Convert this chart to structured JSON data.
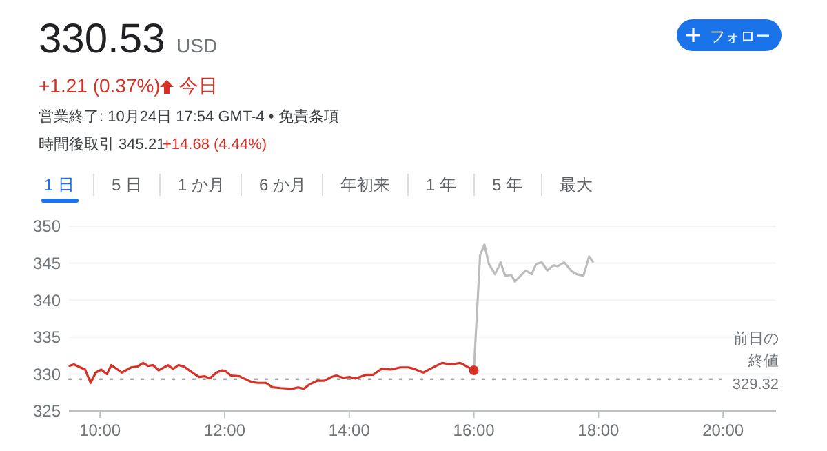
{
  "chart_data": {
    "type": "line",
    "title": "330.53",
    "annotations": [
      "USD",
      "+1.21 (0.37%)",
      "今日",
      "営業終了: 10月24日 17:54 GMT-4 • 免責条項",
      "時間後取引 345.21",
      "+14.68 (4.44%)",
      "1 日",
      "5 日",
      "1 か月",
      "6 か月",
      "年初来",
      "1 年",
      "5 年",
      "最大",
      "フォロー"
    ],
    "xlim": [
      9.5,
      20.85
    ],
    "xticks": [
      {
        "value": 10,
        "label": "10:00"
      },
      {
        "value": 12,
        "label": "12:00"
      },
      {
        "value": 14,
        "label": "14:00"
      },
      {
        "value": 16,
        "label": "16:00"
      },
      {
        "value": 18,
        "label": "18:00"
      },
      {
        "value": 20,
        "label": "20:00"
      }
    ],
    "ylim": [
      325,
      350
    ],
    "yticks": [
      325,
      330,
      335,
      340,
      345,
      350
    ],
    "grid": "y",
    "marker": "none",
    "line_style": "solid",
    "ref_lines": [
      {
        "axis": "y",
        "value": 329.32,
        "label": "前日の終値 329.32",
        "color": "#9e9e9e",
        "line_style": "dotted"
      }
    ],
    "series": [
      {
        "color": "#d93025",
        "x": [
          9.51,
          9.58,
          9.76,
          9.85,
          9.93,
          10.02,
          10.11,
          10.18,
          10.35,
          10.5,
          10.6,
          10.69,
          10.77,
          10.85,
          10.94,
          11.09,
          11.17,
          11.26,
          11.35,
          11.5,
          11.59,
          11.68,
          11.76,
          11.87,
          11.96,
          12.01,
          12.1,
          12.24,
          12.31,
          12.44,
          12.53,
          12.66,
          12.77,
          12.9,
          13.08,
          13.18,
          13.27,
          13.36,
          13.49,
          13.6,
          13.71,
          13.79,
          13.9,
          14.01,
          14.1,
          14.27,
          14.38,
          14.52,
          14.67,
          14.82,
          14.95,
          15.04,
          15.19,
          15.3,
          15.49,
          15.63,
          15.78,
          15.85,
          16.0
        ],
        "values": [
          331.1,
          331.3,
          330.6,
          328.8,
          330.2,
          330.6,
          330.0,
          331.2,
          330.2,
          330.9,
          331.0,
          331.5,
          331.1,
          331.2,
          330.5,
          331.2,
          330.7,
          331.2,
          331.0,
          330.1,
          329.6,
          329.7,
          329.4,
          330.2,
          330.5,
          330.4,
          329.8,
          329.7,
          329.4,
          328.9,
          328.8,
          328.8,
          328.2,
          328.1,
          328.0,
          328.2,
          328.0,
          328.6,
          329.1,
          329.1,
          329.6,
          329.8,
          329.5,
          329.6,
          329.4,
          329.9,
          329.9,
          330.7,
          330.6,
          330.9,
          330.9,
          330.7,
          330.2,
          330.7,
          331.5,
          331.3,
          331.5,
          331.2,
          330.5
        ]
      },
      {
        "color": "#bdbdbd",
        "x": [
          16.0,
          16.1,
          16.17,
          16.24,
          16.34,
          16.43,
          16.5,
          16.6,
          16.66,
          16.83,
          16.93,
          17.0,
          17.09,
          17.18,
          17.28,
          17.35,
          17.45,
          17.57,
          17.65,
          17.76,
          17.85,
          17.91
        ],
        "values": [
          330.5,
          346.1,
          347.5,
          344.9,
          343.5,
          345.1,
          343.3,
          343.4,
          342.5,
          344.0,
          343.5,
          344.9,
          345.1,
          344.0,
          344.7,
          344.6,
          345.1,
          343.9,
          343.5,
          343.3,
          345.9,
          345.2
        ]
      }
    ]
  }
}
